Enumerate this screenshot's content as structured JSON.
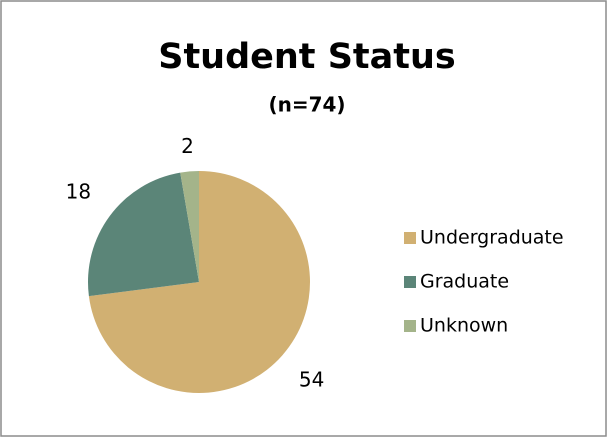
{
  "chart_data": {
    "type": "pie",
    "title": "Student Status",
    "subtitle": "(n=74)",
    "categories": [
      "Undergraduate",
      "Graduate",
      "Unknown"
    ],
    "values": [
      54,
      18,
      2
    ],
    "colors": [
      "#d1b072",
      "#5b8578",
      "#a4b48a"
    ],
    "legend": "right"
  }
}
